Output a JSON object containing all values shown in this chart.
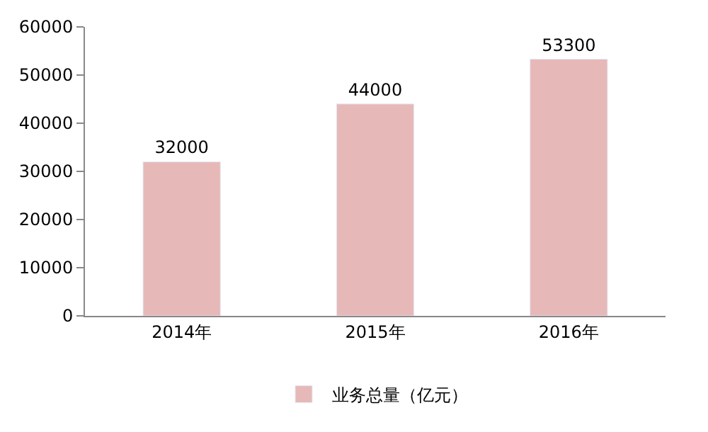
{
  "chart_data": {
    "type": "bar",
    "categories": [
      "2014年",
      "2015年",
      "2016年"
    ],
    "series": [
      {
        "name": "业务总量（亿元）",
        "color": "#e6b9b8",
        "values": [
          32000,
          44000,
          53300
        ]
      }
    ],
    "ylim": [
      0,
      60000
    ],
    "yticks": [
      0,
      10000,
      20000,
      30000,
      40000,
      50000,
      60000
    ],
    "grid": false,
    "legend": "bottom",
    "data_labels": true
  }
}
